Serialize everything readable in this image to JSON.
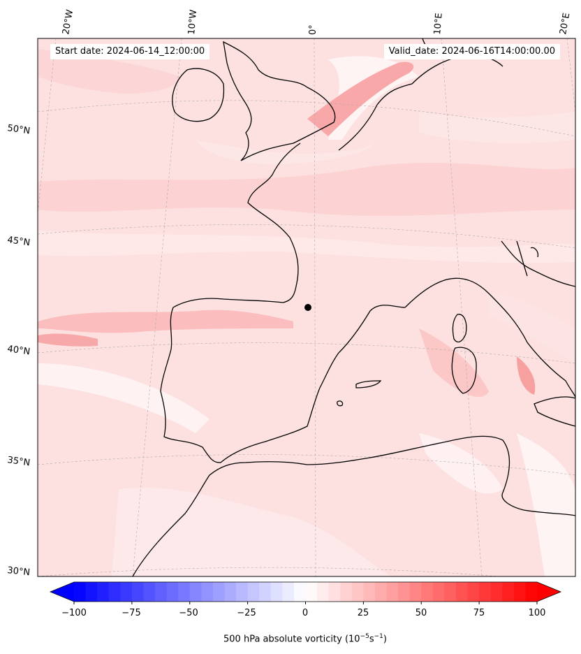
{
  "map": {
    "start_date_label": "Start date: 2024-06-14_12:00:00",
    "valid_date_label": "Valid_date: 2024-06-16T14:00:00.00",
    "lon_labels": [
      "20°W",
      "10°W",
      "0°",
      "10°E",
      "20°E"
    ],
    "lat_labels": [
      "50°N",
      "45°N",
      "40°N",
      "35°N",
      "30°N"
    ],
    "point_marker": "black-dot-marker"
  },
  "colorbar": {
    "tick_labels": [
      "−100",
      "−75",
      "−50",
      "−25",
      "0",
      "25",
      "50",
      "75",
      "100"
    ],
    "title_prefix": "500 hPa absolute vorticity (10",
    "title_exp1": "−5",
    "title_mid": "s",
    "title_exp2": "−1",
    "title_suffix": ")",
    "min_color": "#0000ff",
    "mid_color": "#ffffff",
    "max_color": "#ff0000",
    "min": -100,
    "max": 100,
    "levels": 41
  }
}
